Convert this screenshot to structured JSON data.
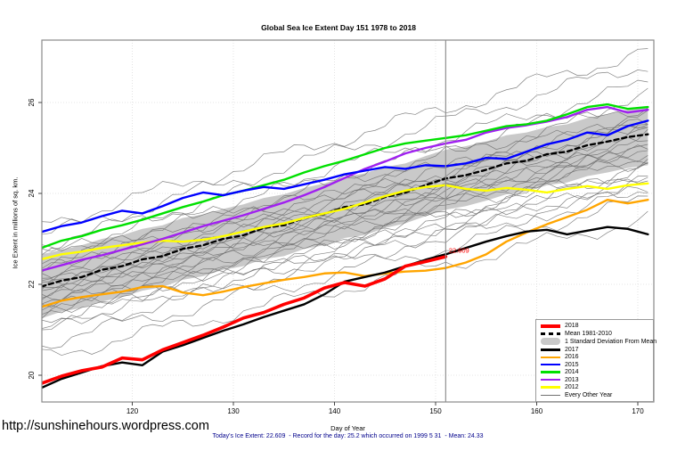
{
  "chart_data": {
    "type": "line",
    "title": "Global Sea Ice Extent Day 151 1978 to 2018",
    "xlabel": "Day of Year",
    "ylabel": "Ice Extent in millions of sq. km.",
    "xlim": [
      111,
      171.6
    ],
    "ylim": [
      19.5,
      27.35
    ],
    "x_ticks": [
      120,
      130,
      140,
      150,
      160,
      170
    ],
    "y_ticks": [
      20,
      22,
      24,
      26
    ],
    "grid": true,
    "x": [
      111,
      113,
      115,
      117,
      119,
      121,
      123,
      125,
      127,
      129,
      131,
      133,
      135,
      137,
      139,
      141,
      143,
      145,
      147,
      149,
      151,
      153,
      155,
      157,
      159,
      161,
      163,
      165,
      167,
      169,
      171
    ],
    "band": {
      "label": "1 Standard Deviation From Mean",
      "color": "#C9C9C9",
      "top": [
        22.66,
        22.76,
        22.86,
        23.0,
        23.08,
        23.22,
        23.3,
        23.46,
        23.54,
        23.66,
        23.76,
        23.9,
        23.98,
        24.12,
        24.22,
        24.36,
        24.44,
        24.58,
        24.66,
        24.82,
        24.96,
        25.04,
        25.14,
        25.28,
        25.34,
        25.46,
        25.52,
        25.66,
        25.74,
        25.84,
        25.9
      ],
      "bottom": [
        21.25,
        21.4,
        21.48,
        21.62,
        21.72,
        21.86,
        21.94,
        22.1,
        22.18,
        22.32,
        22.4,
        22.56,
        22.62,
        22.78,
        22.86,
        23.02,
        23.08,
        23.24,
        23.34,
        23.5,
        23.64,
        23.72,
        23.84,
        23.98,
        24.04,
        24.18,
        24.24,
        24.38,
        24.46,
        24.56,
        24.62
      ]
    },
    "series": [
      {
        "name": "Mean 1981-2010",
        "color": "#000000",
        "width": 2.4,
        "dash": "5 4",
        "values": [
          21.95,
          22.08,
          22.16,
          22.32,
          22.4,
          22.55,
          22.62,
          22.78,
          22.86,
          23.0,
          23.08,
          23.24,
          23.3,
          23.46,
          23.55,
          23.7,
          23.76,
          23.92,
          24.02,
          24.18,
          24.33,
          24.4,
          24.52,
          24.66,
          24.72,
          24.86,
          24.92,
          25.06,
          25.14,
          25.24,
          25.3
        ]
      },
      {
        "name": "2012",
        "color": "#FFFF00",
        "width": 2.4,
        "values": [
          22.55,
          22.66,
          22.72,
          22.8,
          22.86,
          22.92,
          22.96,
          22.94,
          22.98,
          23.06,
          23.16,
          23.26,
          23.34,
          23.46,
          23.56,
          23.66,
          23.8,
          23.94,
          24.06,
          24.14,
          24.18,
          24.1,
          24.06,
          24.12,
          24.08,
          24.02,
          24.1,
          24.16,
          24.1,
          24.18,
          24.22
        ]
      },
      {
        "name": "2013",
        "color": "#A020F0",
        "width": 2.4,
        "values": [
          22.3,
          22.42,
          22.54,
          22.64,
          22.76,
          22.88,
          23.0,
          23.14,
          23.28,
          23.4,
          23.52,
          23.66,
          23.8,
          23.96,
          24.14,
          24.34,
          24.54,
          24.7,
          24.88,
          25.0,
          25.1,
          25.18,
          25.34,
          25.44,
          25.5,
          25.58,
          25.68,
          25.84,
          25.9,
          25.78,
          25.84
        ]
      },
      {
        "name": "2014",
        "color": "#00E000",
        "width": 2.4,
        "values": [
          22.8,
          22.96,
          23.06,
          23.2,
          23.3,
          23.42,
          23.56,
          23.7,
          23.82,
          23.96,
          24.06,
          24.18,
          24.3,
          24.46,
          24.6,
          24.72,
          24.86,
          25.0,
          25.1,
          25.16,
          25.22,
          25.28,
          25.38,
          25.48,
          25.52,
          25.6,
          25.74,
          25.9,
          25.96,
          25.86,
          25.9
        ]
      },
      {
        "name": "2015",
        "color": "#0000FF",
        "width": 2.4,
        "values": [
          23.15,
          23.28,
          23.36,
          23.5,
          23.62,
          23.56,
          23.72,
          23.9,
          24.02,
          23.96,
          24.06,
          24.14,
          24.1,
          24.2,
          24.3,
          24.42,
          24.5,
          24.58,
          24.54,
          24.62,
          24.6,
          24.66,
          24.78,
          24.76,
          24.92,
          25.08,
          25.18,
          25.34,
          25.28,
          25.48,
          25.6
        ]
      },
      {
        "name": "2016",
        "color": "#FFA500",
        "width": 2.4,
        "values": [
          21.5,
          21.64,
          21.72,
          21.78,
          21.84,
          21.94,
          21.96,
          21.82,
          21.76,
          21.84,
          21.94,
          22.02,
          22.1,
          22.16,
          22.24,
          22.26,
          22.18,
          22.24,
          22.28,
          22.3,
          22.36,
          22.48,
          22.66,
          22.94,
          23.14,
          23.32,
          23.48,
          23.64,
          23.86,
          23.78,
          23.86
        ]
      },
      {
        "name": "2017",
        "color": "#000000",
        "width": 2.4,
        "values": [
          19.72,
          19.92,
          20.06,
          20.2,
          20.28,
          20.22,
          20.52,
          20.66,
          20.82,
          20.98,
          21.12,
          21.28,
          21.42,
          21.56,
          21.78,
          22.06,
          22.16,
          22.26,
          22.4,
          22.54,
          22.66,
          22.8,
          22.94,
          23.06,
          23.16,
          23.2,
          23.1,
          23.18,
          23.26,
          23.22,
          23.1
        ]
      },
      {
        "name": "2018",
        "color": "#FF0000",
        "width": 3.6,
        "x": [
          111,
          113,
          115,
          117,
          119,
          121,
          123,
          125,
          127,
          129,
          131,
          133,
          135,
          137,
          139,
          141,
          143,
          145,
          147,
          149,
          151
        ],
        "values": [
          19.82,
          19.98,
          20.1,
          20.18,
          20.38,
          20.34,
          20.56,
          20.72,
          20.88,
          21.06,
          21.26,
          21.38,
          21.56,
          21.7,
          21.92,
          22.04,
          21.96,
          22.12,
          22.4,
          22.5,
          22.609
        ]
      }
    ],
    "other_years": {
      "label": "Every Other Year",
      "color": "#6E6E6E",
      "width": 0.7,
      "wiggle_amp": 0.14,
      "lines": [
        [
          20.4,
          23.45,
          1
        ],
        [
          20.7,
          23.85,
          2
        ],
        [
          20.95,
          24.15,
          3
        ],
        [
          21.1,
          24.35,
          4
        ],
        [
          21.2,
          24.05,
          5
        ],
        [
          21.3,
          24.45,
          6
        ],
        [
          21.35,
          24.65,
          7
        ],
        [
          21.45,
          24.25,
          8
        ],
        [
          21.5,
          24.75,
          9
        ],
        [
          21.6,
          24.55,
          10
        ],
        [
          21.65,
          24.95,
          11
        ],
        [
          21.7,
          24.85,
          12
        ],
        [
          21.8,
          25.05,
          13
        ],
        [
          21.85,
          25.15,
          14
        ],
        [
          21.9,
          24.95,
          15
        ],
        [
          21.95,
          25.25,
          16
        ],
        [
          22.0,
          25.35,
          17
        ],
        [
          22.05,
          25.05,
          18
        ],
        [
          22.1,
          25.45,
          19
        ],
        [
          22.2,
          25.55,
          20
        ],
        [
          22.3,
          25.65,
          21
        ],
        [
          22.4,
          25.75,
          22
        ],
        [
          22.5,
          25.45,
          23
        ],
        [
          22.6,
          25.95,
          24
        ],
        [
          22.7,
          26.15,
          25
        ],
        [
          22.85,
          26.4,
          26
        ],
        [
          23.05,
          26.85,
          27
        ],
        [
          23.3,
          27.15,
          28
        ]
      ]
    },
    "vline": {
      "day": 151,
      "color": "#909090"
    },
    "annotation": {
      "text": "22.609",
      "day": 151.3,
      "value": 22.7,
      "color": "#FF0000"
    },
    "legend": {
      "position": "bottom-right",
      "items": [
        {
          "label": "2018",
          "color": "#FF0000",
          "type": "line",
          "width": 4
        },
        {
          "label": "Mean 1981-2010",
          "color": "#000000",
          "type": "dashed",
          "width": 3
        },
        {
          "label": "1 Standard Deviation From Mean",
          "color": "#C9C9C9",
          "type": "band"
        },
        {
          "label": "2017",
          "color": "#000000",
          "type": "line",
          "width": 2.5
        },
        {
          "label": "2016",
          "color": "#FFA500",
          "type": "line",
          "width": 2.5
        },
        {
          "label": "2015",
          "color": "#0000FF",
          "type": "line",
          "width": 2.5
        },
        {
          "label": "2014",
          "color": "#00E000",
          "type": "line",
          "width": 2.5
        },
        {
          "label": "2013",
          "color": "#A020F0",
          "type": "line",
          "width": 2.5
        },
        {
          "label": "2012",
          "color": "#FFFF00",
          "type": "line",
          "width": 2.5
        },
        {
          "label": "Every Other Year",
          "color": "#707070",
          "type": "line",
          "width": 1
        }
      ]
    }
  },
  "footer": {
    "caption": "Today's Ice Extent: 22.609  - Record for the day: 25.2 which occurred on 1999 5 31  - Mean: 24.33",
    "url": "http://sunshinehours.wordpress.com"
  }
}
